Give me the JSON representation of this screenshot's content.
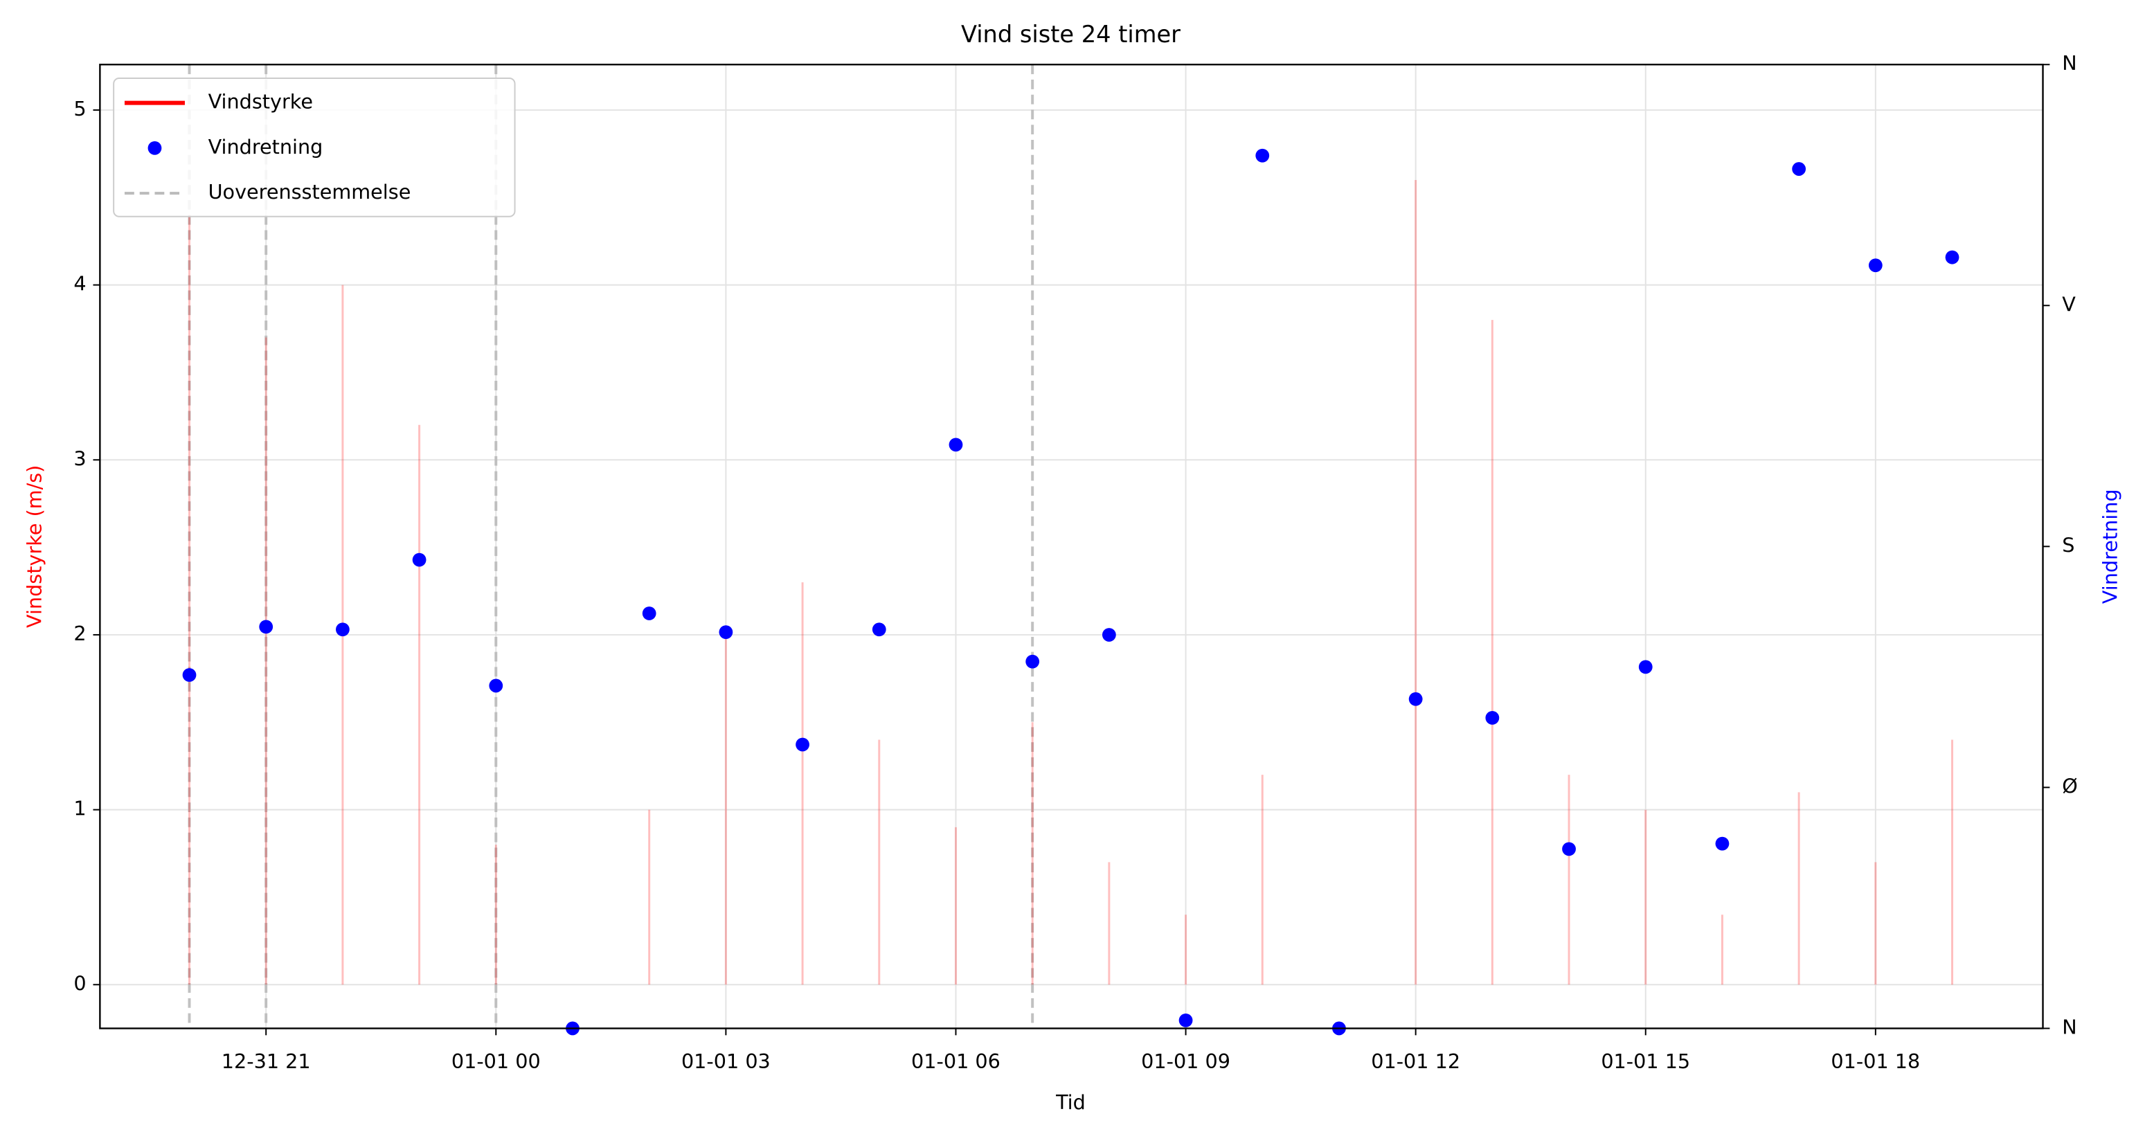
{
  "chart_data": {
    "type": "combo",
    "title": "Vind siste 24 timer",
    "x_label": "Tid",
    "y_label": "Vindstyrke (m/s)",
    "y2_label": "Vindretning",
    "x": [
      "12-31 20",
      "12-31 21",
      "12-31 22",
      "12-31 23",
      "01-01 00",
      "01-01 01",
      "01-01 02",
      "01-01 03",
      "01-01 04",
      "01-01 05",
      "01-01 06",
      "01-01 07",
      "01-01 08",
      "01-01 09",
      "01-01 10",
      "01-01 11",
      "01-01 12",
      "01-01 13",
      "01-01 14",
      "01-01 15",
      "01-01 16",
      "01-01 17",
      "01-01 18",
      "01-01 19"
    ],
    "xlim": [
      "12-31 18:50",
      "01-01 20:11"
    ],
    "xticks": [
      "12-31 21",
      "01-01 00",
      "01-01 03",
      "01-01 06",
      "01-01 09",
      "01-01 12",
      "01-01 15",
      "01-01 18"
    ],
    "ylim": [
      -0.25,
      5.26
    ],
    "yticks": [
      0,
      1,
      2,
      3,
      4,
      5
    ],
    "y2lim": [
      0,
      360
    ],
    "y2ticks": [
      {
        "value": 0,
        "label": "N"
      },
      {
        "value": 90,
        "label": "Ø"
      },
      {
        "value": 180,
        "label": "S"
      },
      {
        "value": 270,
        "label": "V"
      },
      {
        "value": 360,
        "label": "N"
      }
    ],
    "grid": true,
    "legend": "upper left",
    "series": [
      {
        "name": "Vindstyrke",
        "type": "stem",
        "color": "#ff0000",
        "values": [
          4.4,
          3.7,
          4.0,
          3.2,
          0.8,
          0,
          1.0,
          2.0,
          2.3,
          1.4,
          0.9,
          1.5,
          0.7,
          0.4,
          1.2,
          0,
          4.6,
          3.8,
          1.2,
          1.0,
          0.4,
          1.1,
          0.7,
          1.4
        ]
      },
      {
        "name": "Vindretning",
        "type": "scatter",
        "axis": "y2",
        "color": "#0000ff",
        "values": [
          132,
          150,
          149,
          175,
          128,
          0,
          155,
          148,
          106,
          149,
          218,
          137,
          147,
          3,
          326,
          0,
          123,
          116,
          67,
          135,
          69,
          321,
          285,
          288
        ]
      }
    ],
    "vlines": {
      "name": "Uoverensstemmelse",
      "color": "#bbbbbb",
      "x": [
        "12-31 20",
        "12-31 21",
        "01-01 00",
        "01-01 07"
      ]
    }
  }
}
